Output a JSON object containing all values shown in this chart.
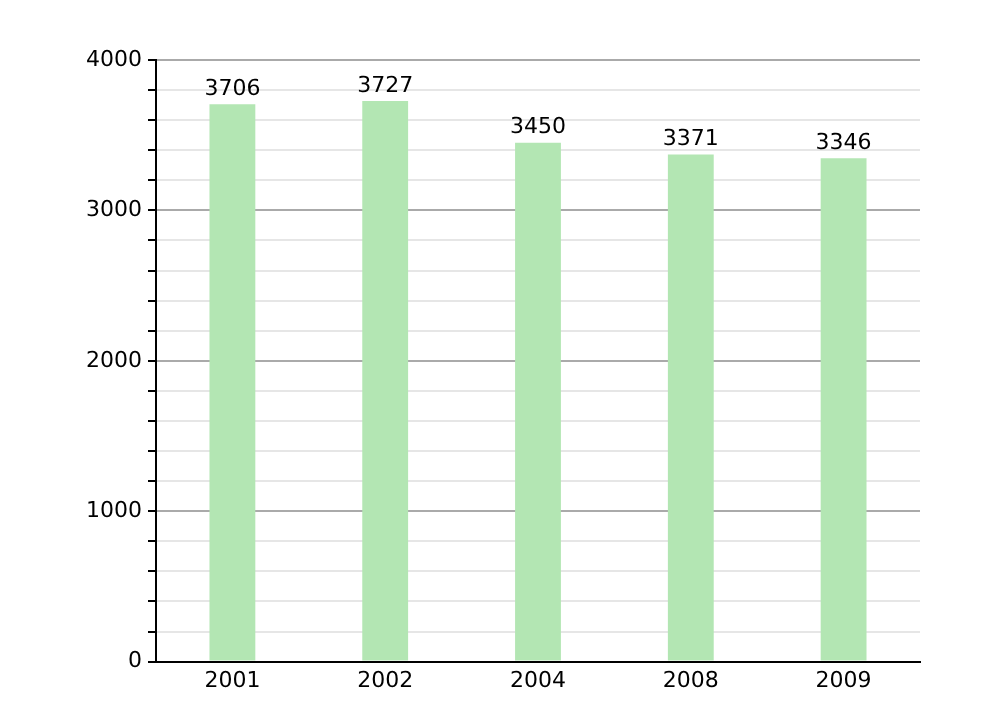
{
  "chart_data": {
    "type": "bar",
    "categories": [
      "2001",
      "2002",
      "2004",
      "2008",
      "2009"
    ],
    "values": [
      3706,
      3727,
      3450,
      3371,
      3346
    ],
    "color": "#b3e6b3",
    "ylim": [
      0,
      4000
    ],
    "yticks": [
      0,
      {
        "value": 200,
        "label": null
      },
      {
        "value": 400,
        "label": null
      },
      {
        "value": 600,
        "label": null
      },
      {
        "value": 800,
        "label": null
      },
      1000,
      {
        "value": 1200,
        "label": null
      },
      {
        "value": 1400,
        "label": null
      },
      {
        "value": 1600,
        "label": null
      },
      {
        "value": 1800,
        "label": null
      },
      2000,
      {
        "value": 2200,
        "label": null
      },
      {
        "value": 2400,
        "label": null
      },
      {
        "value": 2600,
        "label": null
      },
      {
        "value": 2800,
        "label": null
      },
      3000,
      {
        "value": 3200,
        "label": null
      },
      {
        "value": 3400,
        "label": null
      },
      {
        "value": 3600,
        "label": null
      },
      {
        "value": 3800,
        "label": null
      },
      4000
    ],
    "grid": true,
    "data_labels": true
  }
}
